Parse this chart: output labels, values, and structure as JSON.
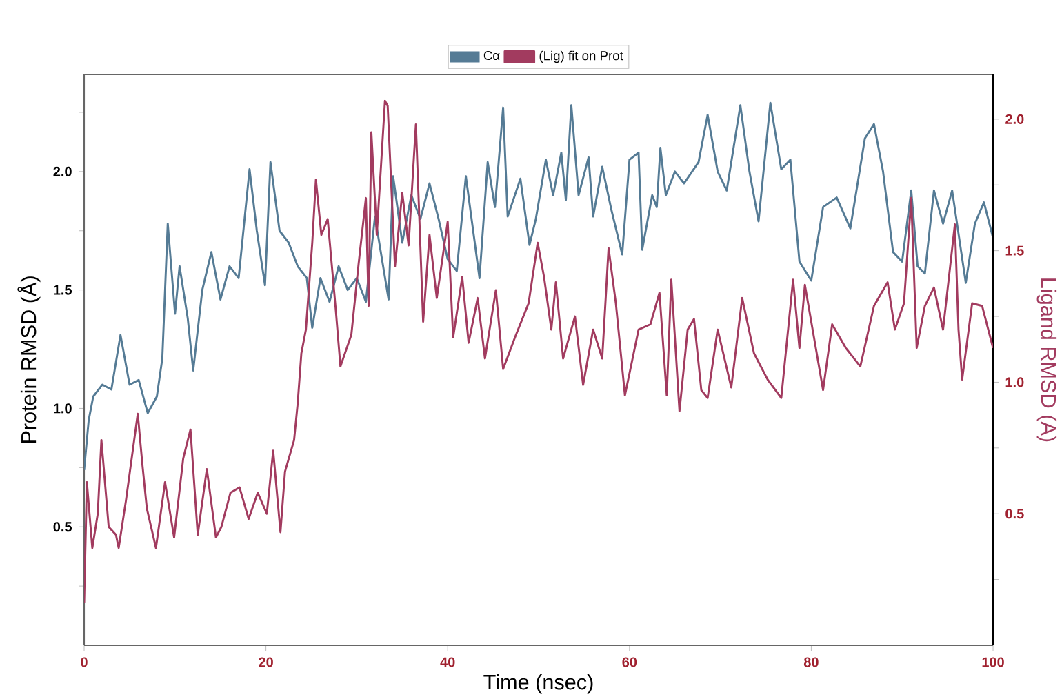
{
  "chart_data": {
    "type": "line",
    "xlabel": "Time (nsec)",
    "ylabel": "Protein RMSD (Å)",
    "y2label": "Ligand RMSD (A)",
    "xlim": [
      0,
      100
    ],
    "xticks": [
      0,
      20,
      40,
      60,
      80,
      100
    ],
    "ylim": [
      0,
      2.41
    ],
    "yticks": [
      {
        "value": 0.25,
        "label": null
      },
      {
        "value": 0.5,
        "label": "0.5"
      },
      {
        "value": 0.75,
        "label": null
      },
      {
        "value": 1.0,
        "label": "1.0"
      },
      {
        "value": 1.25,
        "label": null
      },
      {
        "value": 1.5,
        "label": "1.5"
      },
      {
        "value": 1.75,
        "label": null
      },
      {
        "value": 2.0,
        "label": "2.0"
      },
      {
        "value": 2.25,
        "label": null
      }
    ],
    "y2lim": [
      0,
      2.17
    ],
    "y2ticks": [
      {
        "value": 0.25,
        "label": null
      },
      {
        "value": 0.5,
        "label": "0.5"
      },
      {
        "value": 0.75,
        "label": null
      },
      {
        "value": 1.0,
        "label": "1.0"
      },
      {
        "value": 1.25,
        "label": null
      },
      {
        "value": 1.5,
        "label": "1.5"
      },
      {
        "value": 1.75,
        "label": null
      },
      {
        "value": 2.0,
        "label": "2.0"
      }
    ],
    "legend": "top",
    "grid": false,
    "line_style": "solid",
    "series": [
      {
        "name": "Cα",
        "color": "#557b95",
        "x": [
          0,
          0.5,
          1,
          2,
          3,
          4,
          5,
          6,
          7,
          8,
          8.6,
          9.2,
          10,
          10.5,
          11.4,
          12,
          13,
          14,
          15,
          16,
          17,
          18.2,
          19,
          19.9,
          20.5,
          21.5,
          22.5,
          23.5,
          24.5,
          25.1,
          26,
          27,
          28,
          29,
          30,
          31,
          32,
          33.5,
          34,
          35,
          36,
          37,
          38,
          39,
          40,
          41,
          42,
          43.5,
          44.4,
          45.2,
          46.1,
          46.6,
          48,
          49,
          49.7,
          50.8,
          51.6,
          52.5,
          53,
          53.6,
          54.4,
          55.5,
          56,
          57,
          58,
          59.2,
          60,
          61,
          61.4,
          62.5,
          63,
          63.4,
          64,
          65,
          66,
          67.6,
          68.6,
          69.7,
          70.7,
          72.2,
          73.2,
          74.2,
          75.5,
          76.7,
          77.7,
          78.7,
          80,
          81.3,
          82.8,
          84.3,
          85.9,
          86.9,
          87.9,
          89,
          90,
          91,
          91.7,
          92.5,
          93.5,
          94.5,
          95.5,
          97,
          98,
          99,
          100
        ],
        "values": [
          0.74,
          0.95,
          1.05,
          1.1,
          1.08,
          1.31,
          1.1,
          1.12,
          0.98,
          1.05,
          1.21,
          1.78,
          1.4,
          1.6,
          1.38,
          1.16,
          1.5,
          1.66,
          1.46,
          1.6,
          1.55,
          2.01,
          1.75,
          1.52,
          2.04,
          1.75,
          1.7,
          1.6,
          1.55,
          1.34,
          1.55,
          1.45,
          1.6,
          1.5,
          1.55,
          1.45,
          1.81,
          1.46,
          1.98,
          1.7,
          1.9,
          1.8,
          1.95,
          1.8,
          1.63,
          1.58,
          1.98,
          1.55,
          2.04,
          1.85,
          2.27,
          1.81,
          1.97,
          1.69,
          1.8,
          2.05,
          1.9,
          2.08,
          1.88,
          2.28,
          1.9,
          2.06,
          1.81,
          2.02,
          1.84,
          1.65,
          2.05,
          2.08,
          1.67,
          1.9,
          1.85,
          2.1,
          1.9,
          2.0,
          1.95,
          2.04,
          2.24,
          2.0,
          1.92,
          2.28,
          2.0,
          1.79,
          2.29,
          2.01,
          2.05,
          1.62,
          1.54,
          1.85,
          1.89,
          1.76,
          2.14,
          2.2,
          2.0,
          1.66,
          1.62,
          1.92,
          1.6,
          1.57,
          1.92,
          1.78,
          1.92,
          1.53,
          1.78,
          1.87,
          1.72
        ]
      },
      {
        "name": "(Lig) fit on Prot",
        "color": "#a23b5f",
        "axis": "y2",
        "x": [
          0,
          0.3,
          0.9,
          1.5,
          1.9,
          2.7,
          3.5,
          3.8,
          4.6,
          5.9,
          6.4,
          6.9,
          7.9,
          8.9,
          9.9,
          10.9,
          11.7,
          12.5,
          13.5,
          14.5,
          15.1,
          16.1,
          17.1,
          18.1,
          19.1,
          20.1,
          20.8,
          21.6,
          22.1,
          23.1,
          23.5,
          23.9,
          24.4,
          25.1,
          25.5,
          26.1,
          26.8,
          27.7,
          28.2,
          29.4,
          30.2,
          31,
          31.3,
          31.6,
          32.2,
          33.1,
          33.4,
          34.2,
          35,
          35.7,
          36.5,
          37.3,
          38,
          38.8,
          40,
          40.6,
          41.6,
          42.3,
          43.3,
          44.1,
          45.3,
          46.1,
          47.4,
          48.9,
          49.9,
          50.6,
          51.4,
          51.9,
          52.7,
          54,
          54.9,
          56,
          57,
          57.7,
          58.5,
          59.5,
          61,
          62.3,
          63.3,
          64.1,
          64.6,
          65.5,
          66.4,
          67.1,
          67.9,
          68.6,
          69.7,
          71.2,
          72.4,
          73.7,
          75.2,
          76.7,
          78,
          78.7,
          79.3,
          80.3,
          81.3,
          82.3,
          83.8,
          85.4,
          86.9,
          88.4,
          89.2,
          90.2,
          91,
          91.6,
          92.5,
          93.5,
          94.5,
          95.8,
          96.2,
          96.6,
          97.7,
          98.8,
          100
        ],
        "values": [
          0.16,
          0.62,
          0.37,
          0.5,
          0.78,
          0.45,
          0.42,
          0.37,
          0.55,
          0.88,
          0.69,
          0.52,
          0.37,
          0.62,
          0.41,
          0.71,
          0.82,
          0.42,
          0.67,
          0.41,
          0.45,
          0.58,
          0.6,
          0.48,
          0.58,
          0.5,
          0.74,
          0.43,
          0.66,
          0.78,
          0.92,
          1.11,
          1.2,
          1.53,
          1.77,
          1.56,
          1.62,
          1.27,
          1.06,
          1.18,
          1.45,
          1.7,
          1.29,
          1.95,
          1.56,
          2.07,
          2.05,
          1.44,
          1.72,
          1.52,
          1.98,
          1.23,
          1.56,
          1.32,
          1.61,
          1.17,
          1.4,
          1.15,
          1.32,
          1.09,
          1.35,
          1.05,
          1.17,
          1.3,
          1.53,
          1.4,
          1.2,
          1.38,
          1.09,
          1.25,
          0.99,
          1.2,
          1.09,
          1.51,
          1.3,
          0.95,
          1.2,
          1.22,
          1.34,
          0.95,
          1.39,
          0.89,
          1.2,
          1.24,
          0.97,
          0.94,
          1.2,
          0.98,
          1.32,
          1.11,
          1.01,
          0.94,
          1.39,
          1.13,
          1.37,
          1.17,
          0.97,
          1.22,
          1.13,
          1.06,
          1.29,
          1.38,
          1.2,
          1.3,
          1.7,
          1.13,
          1.29,
          1.36,
          1.2,
          1.6,
          1.2,
          1.01,
          1.3,
          1.29,
          1.13
        ]
      }
    ]
  }
}
